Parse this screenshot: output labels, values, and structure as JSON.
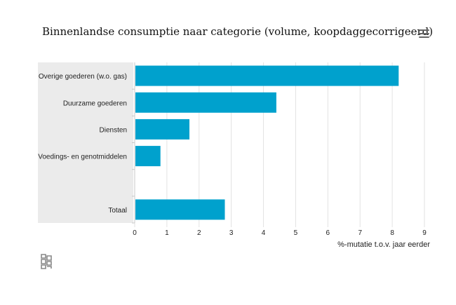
{
  "title": "Binnenlandse consumptie naar categorie (volume, koopdaggecorrigeerd)",
  "menu_icon": "hamburger-menu-icon",
  "logo_icon": "cbs-logo-icon",
  "colors": {
    "bar": "#00a1cd",
    "category_band": "#ebebeb",
    "grid": "#e2e2e2"
  },
  "chart_data": {
    "type": "bar",
    "orientation": "horizontal",
    "categories": [
      "Overige goederen (w.o. gas)",
      "Duurzame goederen",
      "Diensten",
      "Voedings- en genotmiddelen",
      "",
      "Totaal"
    ],
    "values": [
      8.2,
      4.4,
      1.7,
      0.8,
      null,
      2.8
    ],
    "xlim": [
      0,
      9
    ],
    "xticks": [
      "0",
      "1",
      "2",
      "3",
      "4",
      "5",
      "6",
      "7",
      "8",
      "9"
    ],
    "xlabel": "%-mutatie t.o.v. jaar eerder",
    "grid": true,
    "legend": "none"
  }
}
